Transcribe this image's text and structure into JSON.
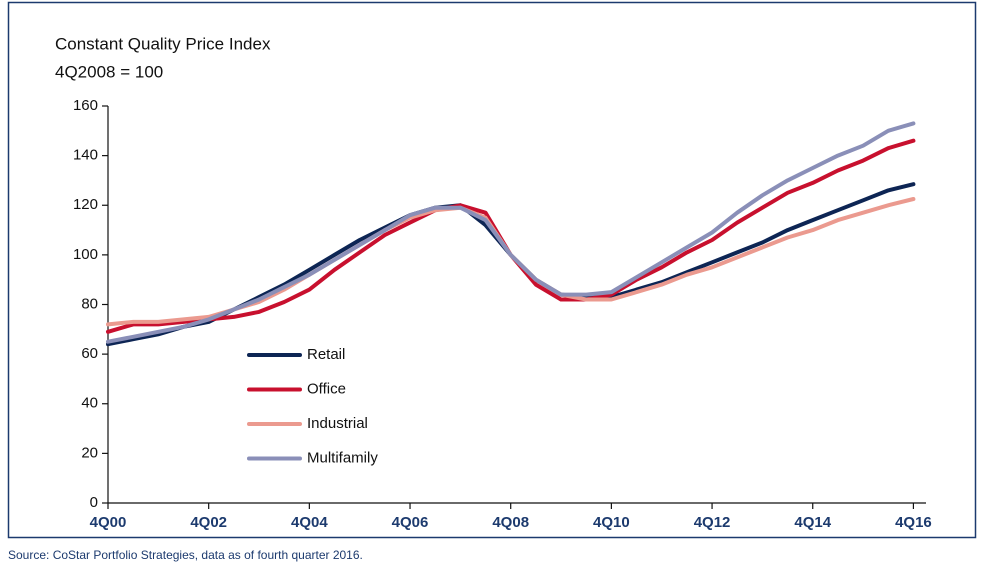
{
  "chart_data": {
    "type": "line",
    "title": "Constant Quality Price Index",
    "subtitle": "4Q2008 = 100",
    "source": "Source: CoStar Portfolio Strategies, data as of fourth quarter 2016.",
    "x": [
      0,
      2,
      4,
      6,
      8,
      10,
      12,
      14,
      16,
      18,
      20,
      22,
      24,
      26,
      28,
      30,
      32,
      34,
      36,
      38,
      40,
      42,
      44,
      46,
      48,
      50,
      52,
      54,
      56,
      58,
      60,
      62,
      64
    ],
    "xlim": [
      0,
      65
    ],
    "xticks": [
      {
        "value": 0,
        "label": "4Q00"
      },
      {
        "value": 8,
        "label": "4Q02"
      },
      {
        "value": 16,
        "label": "4Q04"
      },
      {
        "value": 24,
        "label": "4Q06"
      },
      {
        "value": 32,
        "label": "4Q08"
      },
      {
        "value": 40,
        "label": "4Q10"
      },
      {
        "value": 48,
        "label": "4Q12"
      },
      {
        "value": 56,
        "label": "4Q14"
      },
      {
        "value": 64,
        "label": "4Q16"
      }
    ],
    "ylim": [
      0,
      160
    ],
    "yticks": [
      0,
      20,
      40,
      60,
      80,
      100,
      120,
      140,
      160
    ],
    "grid": false,
    "legend": "center-left",
    "series": [
      {
        "name": "Retail",
        "color": "#0d2554",
        "values": [
          64,
          66,
          68,
          71,
          73,
          78,
          83,
          88,
          94,
          100,
          106,
          111,
          116,
          119,
          120,
          112,
          100,
          90,
          84,
          83,
          83,
          86,
          89,
          93,
          97,
          101,
          105,
          110,
          114,
          118,
          122,
          126,
          128.5
        ]
      },
      {
        "name": "Office",
        "color": "#c8102e",
        "values": [
          69,
          72,
          72,
          73,
          74,
          75,
          77,
          81,
          86,
          94,
          101,
          108,
          113,
          118,
          120,
          117,
          100,
          88,
          82,
          82,
          84,
          90,
          95,
          101,
          106,
          113,
          119,
          125,
          129,
          134,
          138,
          143,
          146
        ]
      },
      {
        "name": "Industrial",
        "color": "#eb9a8f",
        "values": [
          72,
          73,
          73,
          74,
          75,
          78,
          81,
          86,
          92,
          98,
          104,
          110,
          115,
          118,
          119,
          115,
          100,
          90,
          84,
          82,
          82,
          85,
          88,
          92,
          95,
          99,
          103,
          107,
          110,
          114,
          117,
          120,
          122.5
        ]
      },
      {
        "name": "Multifamily",
        "color": "#8a8fb8",
        "values": [
          65,
          67,
          69,
          71,
          74,
          78,
          82,
          87,
          92,
          98,
          104,
          110,
          116,
          119,
          119,
          114,
          100,
          90,
          84,
          84,
          85,
          91,
          97,
          103,
          109,
          117,
          124,
          130,
          135,
          140,
          144,
          150,
          153
        ]
      }
    ]
  }
}
